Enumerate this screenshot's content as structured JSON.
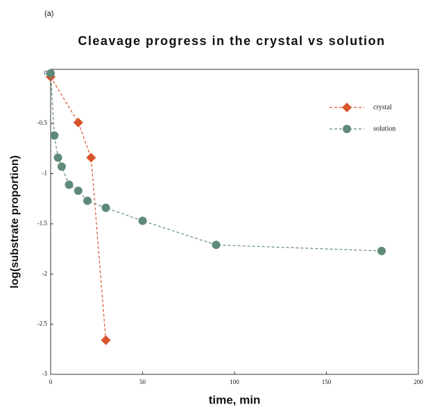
{
  "panel_label": "(a)",
  "chart_data": {
    "type": "line",
    "title": "Cleavage progress in the crystal vs solution",
    "x_label": "time, min",
    "y_label": "log(substrate proportion)",
    "xlim": [
      0,
      200
    ],
    "xticks": [
      0,
      50,
      100,
      150,
      200
    ],
    "ylim": [
      -3,
      0.04
    ],
    "yticks": [
      0,
      -0.5,
      -1,
      -1.5,
      -2,
      -2.5,
      -3
    ],
    "legend": "upper right",
    "series": [
      {
        "name": "crystal",
        "color": "#d9532b",
        "marker": "diamond",
        "x": [
          0,
          15,
          22,
          30
        ],
        "values": [
          -0.035,
          -0.49,
          -0.84,
          -2.66
        ]
      },
      {
        "name": "solution",
        "color": "#5f8a78",
        "marker": "circle",
        "x": [
          0,
          2,
          4,
          6,
          10,
          15,
          20,
          30,
          50,
          90,
          180
        ],
        "values": [
          0,
          -0.62,
          -0.84,
          -0.93,
          -1.11,
          -1.17,
          -1.27,
          -1.34,
          -1.47,
          -1.71,
          -1.77
        ]
      }
    ]
  }
}
